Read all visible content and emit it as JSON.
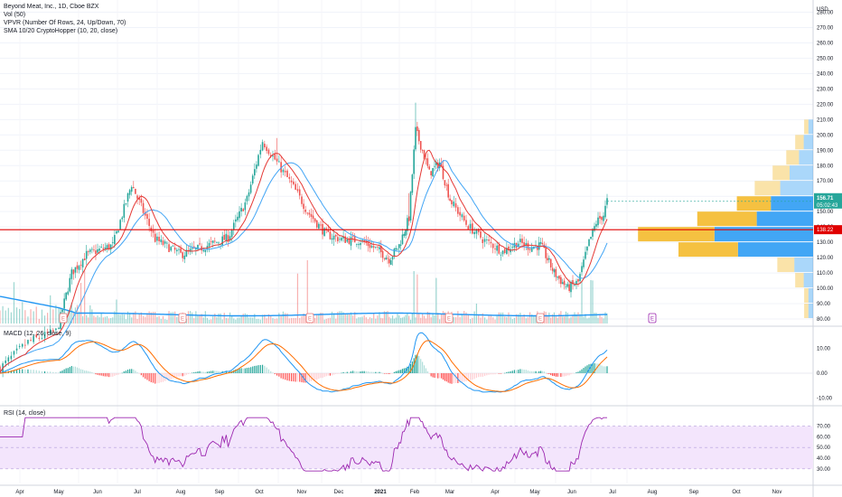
{
  "legend": {
    "title": "Beyond Meat, Inc., 1D, Cboe BZX",
    "vol": "Vol (50)",
    "vpvr": "VPVR (Number Of Rows, 24, Up/Down, 70)",
    "sma": "SMA 10/20 CryptoHopper (10, 20, close)",
    "macd": "MACD (12, 26, close, 9)",
    "rsi": "RSI (14, close)"
  },
  "price_scale": {
    "currency": "USD",
    "last_price": "156.71",
    "countdown": "05:02:43",
    "line_price": "138.22",
    "ticks": [
      "280.00",
      "270.00",
      "260.00",
      "250.00",
      "240.00",
      "230.00",
      "220.00",
      "210.00",
      "200.00",
      "190.00",
      "180.00",
      "170.00",
      "160.00",
      "150.00",
      "140.00",
      "130.00",
      "120.00",
      "110.00",
      "100.00",
      "90.00",
      "80.00"
    ]
  },
  "macd_scale": {
    "ticks": [
      "10.00",
      "0.00",
      "-10.00"
    ]
  },
  "rsi_scale": {
    "ticks": [
      "70.00",
      "60.00",
      "50.00",
      "40.00",
      "30.00"
    ]
  },
  "time_axis": {
    "labels": [
      "Apr",
      "May",
      "Jun",
      "Jul",
      "Aug",
      "Sep",
      "Oct",
      "Nov",
      "Dec",
      "2021",
      "Feb",
      "Mar",
      "Apr",
      "May",
      "Jun",
      "Jul",
      "Aug",
      "Sep",
      "Oct",
      "Nov"
    ]
  },
  "earnings_markers": [
    "E",
    "E",
    "E",
    "E",
    "E",
    "E"
  ],
  "colors": {
    "up": "#26a69a",
    "down": "#ef5350",
    "sma_fast": "#e53935",
    "sma_slow": "#42a5f5",
    "vol_ma": "#2196f3",
    "macd_line": "#2196f3",
    "signal_line": "#ff6d00",
    "rsi_line": "#9c27b0",
    "rsi_band": "#f3e5fc",
    "hline": "#e00000",
    "vpvr_up": "#f5c141",
    "vpvr_down": "#2196f3"
  },
  "chart_data": [
    {
      "type": "candlestick",
      "title": "Beyond Meat, Inc., 1D, Cboe BZX",
      "ylabel": "USD",
      "ylim": [
        75,
        282
      ],
      "x": [
        "Apr",
        "May",
        "Jun",
        "Jul",
        "Aug",
        "Sep",
        "Oct",
        "Nov",
        "Dec",
        "2021",
        "Feb",
        "Mar",
        "Apr",
        "May",
        "Jun"
      ],
      "close_approx": [
        74,
        125,
        142,
        130,
        124,
        140,
        188,
        137,
        140,
        118,
        182,
        134,
        128,
        103,
        150
      ],
      "high_approx": [
        78,
        135,
        165,
        150,
        135,
        160,
        198,
        140,
        145,
        140,
        221,
        160,
        140,
        120,
        158
      ],
      "horizontal_line": 138.22,
      "last_price": 156.71,
      "indicators": [
        "SMA 10",
        "SMA 20"
      ]
    },
    {
      "type": "bar",
      "name": "Vol (50)",
      "note": "volume histogram with moving average"
    },
    {
      "type": "bar",
      "name": "VPVR",
      "rows": 24,
      "price_levels": [
        205,
        195,
        185,
        175,
        165,
        155,
        145,
        135,
        125,
        115,
        105,
        95,
        85
      ],
      "up_volume": [
        1,
        2,
        3,
        4,
        6,
        8,
        14,
        18,
        14,
        4,
        2,
        1,
        1
      ],
      "down_volume": [
        1,
        2,
        3,
        5,
        7,
        9,
        12,
        21,
        16,
        4,
        2,
        1,
        1
      ]
    },
    {
      "type": "line",
      "name": "MACD (12, 26, close, 9)",
      "ylim": [
        -13,
        16
      ],
      "series": [
        {
          "name": "MACD"
        },
        {
          "name": "Signal"
        },
        {
          "name": "Histogram"
        }
      ]
    },
    {
      "type": "line",
      "name": "RSI (14, close)",
      "ylim": [
        27,
        78
      ],
      "band": [
        30,
        70
      ],
      "last": 64
    }
  ]
}
